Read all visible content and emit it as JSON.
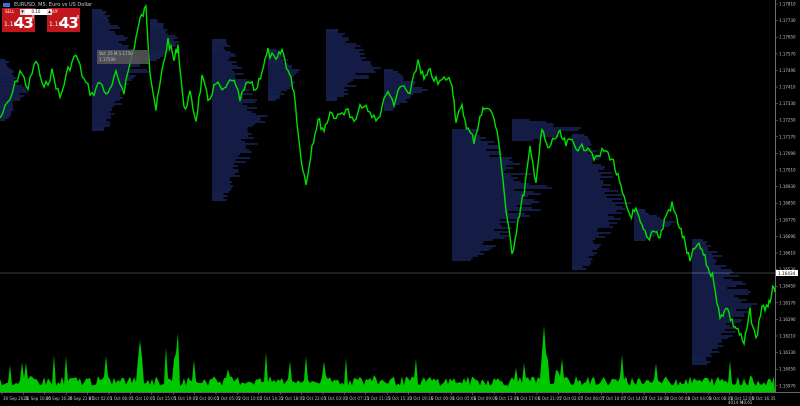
{
  "window": {
    "title": "EURUSD, M5: Euro vs US Dollar",
    "icon": "chart-window-icon"
  },
  "trade_panel": {
    "sell_label": "SELL",
    "buy_label": "BUY",
    "lot_value": "0.10",
    "minus": "▾",
    "plus": "▴",
    "sell_price_small": "1.16",
    "sell_price_big": "43",
    "sell_price_sup": "4",
    "buy_price_small": "1.16",
    "buy_price_big": "43",
    "buy_price_sup": "4"
  },
  "tooltip": {
    "line1": "Vol: 25 M 1.1750",
    "line2": "1.17500"
  },
  "price_axis": {
    "ticks": [
      "1.17810",
      "1.17730",
      "1.17650",
      "1.17570",
      "1.17490",
      "1.17410",
      "1.17330",
      "1.17250",
      "1.17170",
      "1.17090",
      "1.17010",
      "1.16930",
      "1.16850",
      "1.16770",
      "1.16690",
      "1.16610",
      "1.16530",
      "1.16450",
      "1.16370",
      "1.16290",
      "1.16210",
      "1.16130",
      "1.16050",
      "1.15970"
    ],
    "current_price": "1.16434",
    "current_price_color": "#ffffff"
  },
  "time_axis": {
    "ticks": [
      "30 Sep 2025",
      "30 Sep 16:05",
      "30 Sep 16:35",
      "30 Sep 21:05",
      "1 Oct 02:05",
      "1 Oct 06:05",
      "1 Oct 10:05",
      "1 Oct 15:05",
      "1 Oct 19:05",
      "2 Oct 00:05",
      "2 Oct 05:05",
      "2 Oct 10:05",
      "2 Oct 14:35",
      "2 Oct 18:05",
      "2 Oct 22:05",
      "3 Oct 03:05",
      "3 Oct 07:35",
      "3 Oct 11:35",
      "3 Oct 15:35",
      "3 Oct 19:35",
      "6 Oct 00:05",
      "6 Oct 05:05",
      "6 Oct 09:05",
      "6 Oct 13:05",
      "6 Oct 17:05",
      "6 Oct 21:05",
      "7 Oct 02:05",
      "7 Oct 06:05",
      "7 Oct 10:05",
      "7 Oct 14:05",
      "7 Oct 18:05",
      "8 Oct 00:05",
      "8 Oct 04:05",
      "8 Oct 08:05",
      "8 Oct 12:05",
      "8 Oct 16:35"
    ],
    "bottom_marker": "4014 M",
    "bottom_marker_value": "40,65"
  },
  "colors": {
    "line": "#00e000",
    "volume": "#00c800",
    "profile": "#3f5bdc",
    "axis_text": "#c0c0c0",
    "grid_line": "#6e7a8e"
  }
}
